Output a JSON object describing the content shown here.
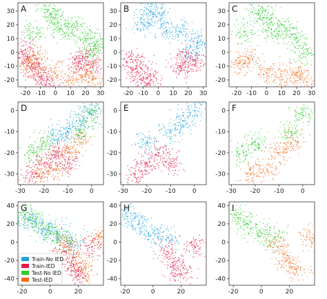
{
  "colors": {
    "train_no_ied": "#1fa2dc",
    "train_ied": "#e41a4a",
    "test_no_ied": "#2ecc2e",
    "test_ied": "#f26b1d"
  },
  "legend": {
    "placement": "lower-left of panel G",
    "entries": [
      "Train-No IED",
      "Train-IED",
      "Test-No IED",
      "Test-IED"
    ]
  },
  "chart_data": [
    {
      "panel": "A",
      "type": "scatter",
      "xlim": [
        -25,
        32
      ],
      "ylim": [
        -25,
        36
      ],
      "xticks": [
        -20,
        -10,
        0,
        10,
        20,
        30
      ],
      "yticks": [
        -20,
        -10,
        0,
        10,
        20,
        30
      ],
      "series": [
        {
          "name": "Train-IED",
          "values": [
            [
              -18,
              -5
            ],
            [
              -15,
              -12
            ],
            [
              -10,
              -18
            ],
            [
              -20,
              2
            ],
            [
              -5,
              -20
            ],
            [
              15,
              -10
            ],
            [
              18,
              -3
            ],
            [
              25,
              -8
            ]
          ]
        },
        {
          "name": "Test-No IED",
          "values": [
            [
              -5,
              30
            ],
            [
              0,
              25
            ],
            [
              5,
              15
            ],
            [
              12,
              18
            ],
            [
              20,
              10
            ],
            [
              25,
              0
            ],
            [
              28,
              8
            ],
            [
              -15,
              15
            ]
          ]
        },
        {
          "name": "Test-IED",
          "values": [
            [
              -18,
              -8
            ],
            [
              -12,
              -5
            ],
            [
              0,
              -15
            ],
            [
              10,
              -20
            ],
            [
              20,
              -15
            ],
            [
              25,
              -20
            ]
          ]
        }
      ]
    },
    {
      "panel": "B",
      "type": "scatter",
      "xlim": [
        -25,
        32
      ],
      "ylim": [
        -25,
        36
      ],
      "xticks": [
        -20,
        -10,
        0,
        10,
        20,
        30
      ],
      "yticks": [
        -20,
        -10,
        0,
        10,
        20,
        30
      ],
      "series": [
        {
          "name": "Train-No IED",
          "values": [
            [
              -5,
              30
            ],
            [
              0,
              28
            ],
            [
              5,
              18
            ],
            [
              15,
              15
            ],
            [
              22,
              0
            ],
            [
              28,
              8
            ],
            [
              -10,
              20
            ]
          ]
        },
        {
          "name": "Train-IED",
          "values": [
            [
              -18,
              -5
            ],
            [
              -15,
              -12
            ],
            [
              -10,
              -18
            ],
            [
              -5,
              -20
            ],
            [
              15,
              -10
            ],
            [
              18,
              -3
            ],
            [
              25,
              -8
            ]
          ]
        }
      ]
    },
    {
      "panel": "C",
      "type": "scatter",
      "xlim": [
        -25,
        32
      ],
      "ylim": [
        -25,
        36
      ],
      "xticks": [
        -20,
        -10,
        0,
        10,
        20,
        30
      ],
      "yticks": [
        -20,
        -10,
        0,
        10,
        20,
        30
      ],
      "series": [
        {
          "name": "Test-No IED",
          "values": [
            [
              -5,
              30
            ],
            [
              0,
              25
            ],
            [
              5,
              15
            ],
            [
              12,
              18
            ],
            [
              20,
              10
            ],
            [
              25,
              0
            ],
            [
              -15,
              15
            ]
          ]
        },
        {
          "name": "Test-IED",
          "values": [
            [
              -18,
              -8
            ],
            [
              -12,
              -5
            ],
            [
              0,
              -15
            ],
            [
              10,
              -20
            ],
            [
              20,
              -15
            ],
            [
              25,
              -20
            ]
          ]
        }
      ]
    },
    {
      "panel": "D",
      "type": "scatter",
      "xlim": [
        -31,
        5
      ],
      "ylim": [
        -35,
        4
      ],
      "xticks": [
        -30,
        -20,
        -10,
        0
      ],
      "yticks": [
        -30,
        -20,
        -10,
        0
      ],
      "series": [
        {
          "name": "Train-No IED",
          "values": [
            [
              -5,
              -5
            ],
            [
              0,
              0
            ],
            [
              -10,
              -10
            ],
            [
              -15,
              -12
            ]
          ]
        },
        {
          "name": "Train-IED",
          "values": [
            [
              -25,
              -30
            ],
            [
              -20,
              -25
            ],
            [
              -15,
              -20
            ],
            [
              -10,
              -25
            ]
          ]
        },
        {
          "name": "Test-No IED",
          "values": [
            [
              0,
              -2
            ],
            [
              -5,
              -10
            ],
            [
              -20,
              -15
            ],
            [
              -25,
              -20
            ]
          ]
        },
        {
          "name": "Test-IED",
          "values": [
            [
              -22,
              -30
            ],
            [
              -15,
              -28
            ],
            [
              -10,
              -20
            ],
            [
              -5,
              -15
            ]
          ]
        }
      ]
    },
    {
      "panel": "E",
      "type": "scatter",
      "xlim": [
        -31,
        5
      ],
      "ylim": [
        -35,
        4
      ],
      "xticks": [
        -30,
        -20,
        -10,
        0
      ],
      "yticks": [
        -30,
        -20,
        -10,
        0
      ],
      "series": [
        {
          "name": "Train-No IED",
          "values": [
            [
              -5,
              -5
            ],
            [
              0,
              0
            ],
            [
              -10,
              -10
            ],
            [
              -20,
              -15
            ]
          ]
        },
        {
          "name": "Train-IED",
          "values": [
            [
              -25,
              -30
            ],
            [
              -20,
              -25
            ],
            [
              -15,
              -20
            ],
            [
              -10,
              -25
            ]
          ]
        }
      ]
    },
    {
      "panel": "F",
      "type": "scatter",
      "xlim": [
        -31,
        5
      ],
      "ylim": [
        -35,
        4
      ],
      "xticks": [
        -30,
        -20,
        -10,
        0
      ],
      "yticks": [
        -30,
        -20,
        -10,
        0
      ],
      "series": [
        {
          "name": "Test-No IED",
          "values": [
            [
              0,
              -2
            ],
            [
              -5,
              -10
            ],
            [
              -20,
              -15
            ],
            [
              -25,
              -20
            ]
          ]
        },
        {
          "name": "Test-IED",
          "values": [
            [
              -22,
              -30
            ],
            [
              -15,
              -28
            ],
            [
              -10,
              -20
            ],
            [
              -5,
              -15
            ]
          ]
        }
      ]
    },
    {
      "panel": "G",
      "type": "scatter",
      "xlim": [
        -23,
        38
      ],
      "ylim": [
        -47,
        44
      ],
      "xticks": [
        -20,
        0,
        20
      ],
      "yticks": [
        -40,
        -20,
        0,
        20,
        40
      ],
      "series": [
        {
          "name": "Train-No IED",
          "values": [
            [
              -15,
              25
            ],
            [
              -5,
              15
            ],
            [
              5,
              10
            ],
            [
              15,
              0
            ]
          ]
        },
        {
          "name": "Train-IED",
          "values": [
            [
              10,
              -10
            ],
            [
              15,
              -25
            ],
            [
              20,
              -35
            ],
            [
              30,
              -5
            ]
          ]
        },
        {
          "name": "Test-No IED",
          "values": [
            [
              -18,
              30
            ],
            [
              -10,
              20
            ],
            [
              0,
              10
            ],
            [
              10,
              5
            ]
          ]
        },
        {
          "name": "Test-IED",
          "values": [
            [
              12,
              -5
            ],
            [
              18,
              -20
            ],
            [
              25,
              -30
            ],
            [
              35,
              5
            ]
          ]
        }
      ]
    },
    {
      "panel": "H",
      "type": "scatter",
      "xlim": [
        -23,
        38
      ],
      "ylim": [
        -47,
        44
      ],
      "xticks": [
        -20,
        0,
        20
      ],
      "yticks": [
        -40,
        -20,
        0,
        20,
        40
      ],
      "series": [
        {
          "name": "Train-No IED",
          "values": [
            [
              -18,
              28
            ],
            [
              -10,
              20
            ],
            [
              0,
              10
            ],
            [
              10,
              5
            ]
          ]
        },
        {
          "name": "Train-IED",
          "values": [
            [
              10,
              -10
            ],
            [
              15,
              -25
            ],
            [
              20,
              -35
            ],
            [
              30,
              -5
            ]
          ]
        }
      ]
    },
    {
      "panel": "I",
      "type": "scatter",
      "xlim": [
        -23,
        38
      ],
      "ylim": [
        -47,
        44
      ],
      "xticks": [
        -20,
        0,
        20
      ],
      "yticks": [
        -40,
        -20,
        0,
        20,
        40
      ],
      "series": [
        {
          "name": "Test-No IED",
          "values": [
            [
              -18,
              30
            ],
            [
              -10,
              20
            ],
            [
              0,
              10
            ],
            [
              10,
              5
            ]
          ]
        },
        {
          "name": "Test-IED",
          "values": [
            [
              12,
              -5
            ],
            [
              18,
              -20
            ],
            [
              25,
              -30
            ],
            [
              35,
              5
            ]
          ]
        }
      ]
    }
  ]
}
